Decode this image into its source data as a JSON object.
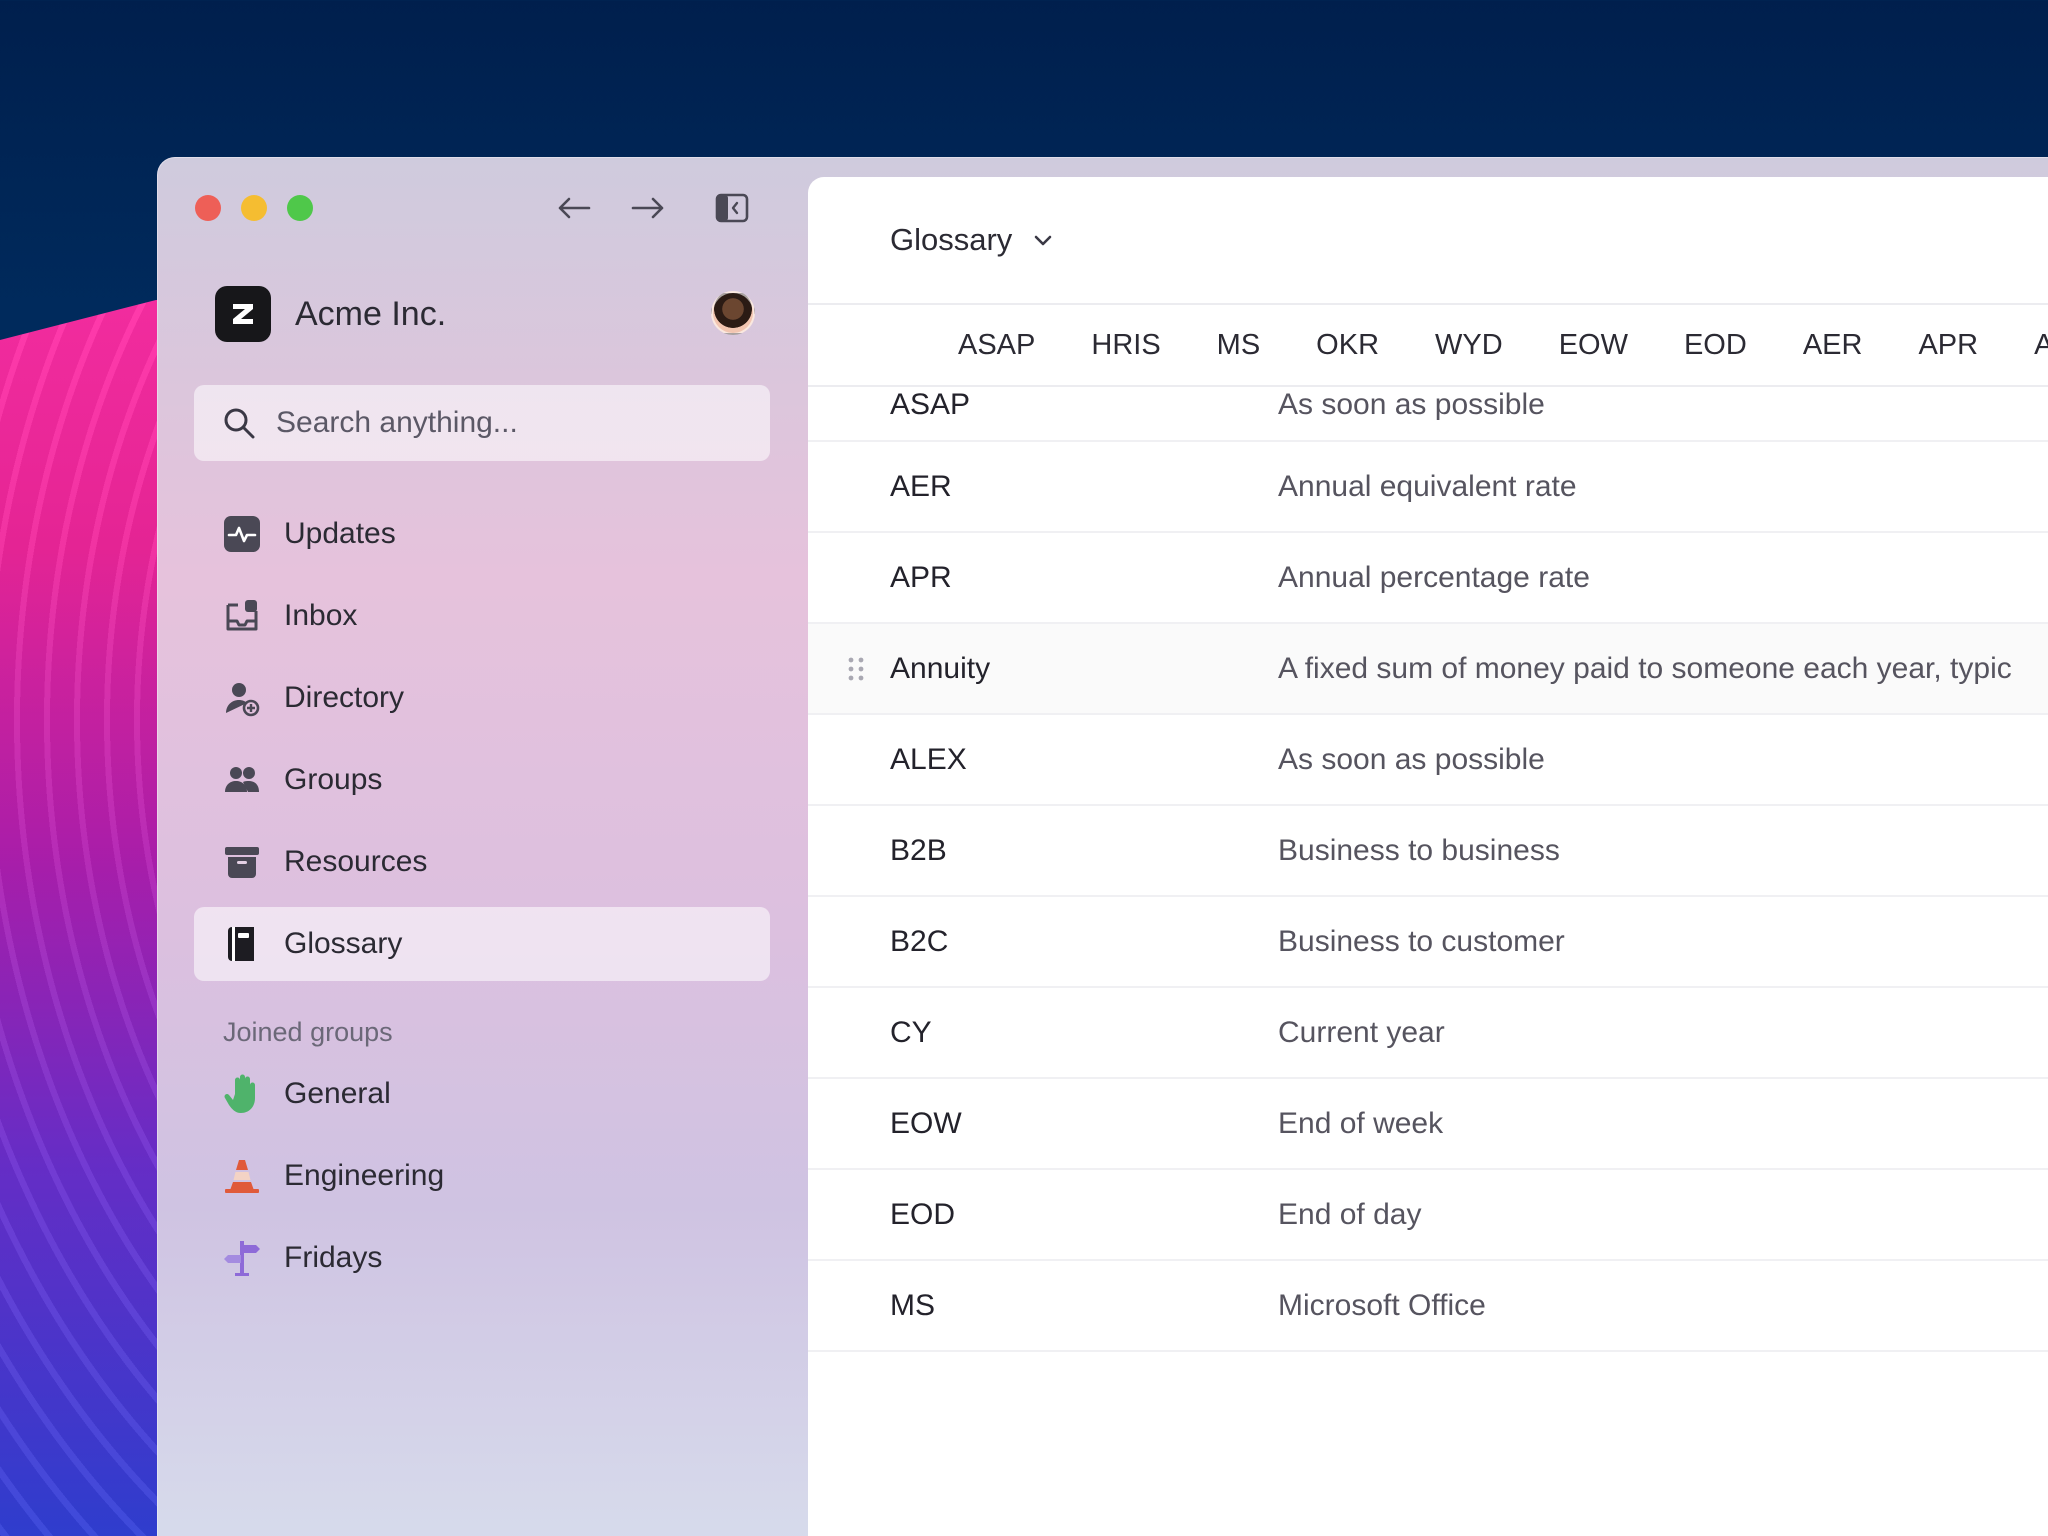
{
  "org": {
    "name": "Acme Inc."
  },
  "search": {
    "placeholder": "Search anything..."
  },
  "nav": [
    {
      "label": "Updates",
      "icon": "activity-icon"
    },
    {
      "label": "Inbox",
      "icon": "inbox-icon"
    },
    {
      "label": "Directory",
      "icon": "add-user-icon"
    },
    {
      "label": "Groups",
      "icon": "users-icon"
    },
    {
      "label": "Resources",
      "icon": "archive-icon"
    },
    {
      "label": "Glossary",
      "icon": "book-icon",
      "active": true
    }
  ],
  "groups": {
    "heading": "Joined groups",
    "items": [
      {
        "label": "General",
        "icon": "raised-hand-icon"
      },
      {
        "label": "Engineering",
        "icon": "traffic-cone-icon"
      },
      {
        "label": "Fridays",
        "icon": "signpost-icon"
      }
    ]
  },
  "main": {
    "title": "Glossary",
    "filters": [
      "ASAP",
      "HRIS",
      "MS",
      "OKR",
      "WYD",
      "EOW",
      "EOD",
      "AER",
      "APR",
      "A"
    ],
    "rows": [
      {
        "term": "ASAP",
        "definition": "As soon as possible"
      },
      {
        "term": "AER",
        "definition": "Annual equivalent rate"
      },
      {
        "term": "APR",
        "definition": "Annual percentage rate"
      },
      {
        "term": "Annuity",
        "definition": "A fixed sum of money paid to someone each year, typic"
      },
      {
        "term": "ALEX",
        "definition": "As soon as possible"
      },
      {
        "term": "B2B",
        "definition": "Business to business"
      },
      {
        "term": "B2C",
        "definition": "Business to customer"
      },
      {
        "term": "CY",
        "definition": "Current year"
      },
      {
        "term": "EOW",
        "definition": "End of week"
      },
      {
        "term": "EOD",
        "definition": "End of day"
      },
      {
        "term": "MS",
        "definition": "Microsoft Office"
      }
    ]
  },
  "colors": {
    "accent_green": "#4fb36b",
    "accent_orange": "#e05a3a",
    "accent_purple": "#8e6ad8"
  }
}
